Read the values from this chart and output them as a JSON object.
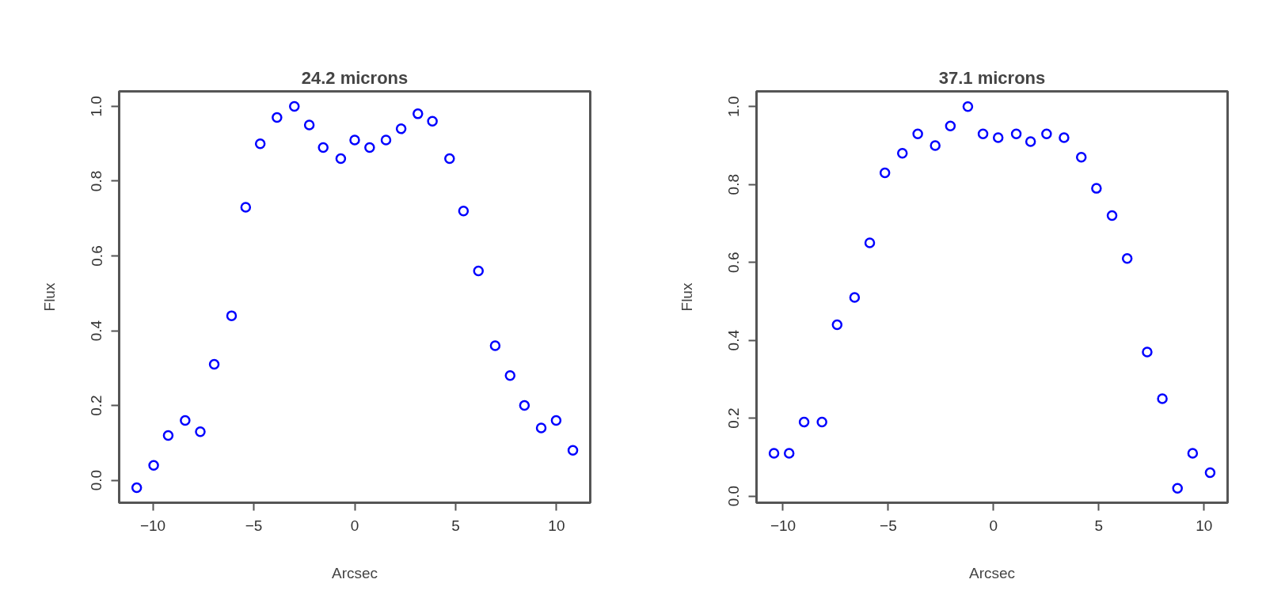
{
  "chart_data": [
    {
      "type": "scatter",
      "title": "24.2 microns",
      "xlabel": "Arcsec",
      "ylabel": "Flux",
      "marker": "circle",
      "xlim": [
        -11.67,
        11.67
      ],
      "ylim": [
        -0.06,
        1.04
      ],
      "xticks": [
        -10,
        -5,
        0,
        5,
        10
      ],
      "yticks": [
        {
          "value": 0,
          "label": "0.0"
        },
        {
          "value": 0.2,
          "label": "0.2"
        },
        {
          "value": 0.4,
          "label": "0.4"
        },
        {
          "value": 0.6,
          "label": "0.6"
        },
        {
          "value": 0.8,
          "label": "0.8"
        },
        {
          "value": 1,
          "label": "1.0"
        }
      ],
      "series": [
        {
          "color": "#0000ff",
          "x": [
            -10.8,
            -9.96,
            -9.24,
            -8.4,
            -7.65,
            -6.96,
            -6.1,
            -5.4,
            -4.68,
            -3.85,
            -2.99,
            -2.25,
            -1.56,
            -0.69,
            0,
            0.74,
            1.55,
            2.3,
            3.13,
            3.85,
            4.7,
            5.39,
            6.13,
            6.96,
            7.7,
            8.41,
            9.24,
            9.98,
            10.81
          ],
          "values": [
            -0.02,
            0.04,
            0.12,
            0.16,
            0.13,
            0.31,
            0.44,
            0.73,
            0.9,
            0.97,
            1.0,
            0.95,
            0.89,
            0.86,
            0.91,
            0.89,
            0.91,
            0.94,
            0.98,
            0.96,
            0.86,
            0.72,
            0.56,
            0.36,
            0.28,
            0.2,
            0.14,
            0.16,
            0.08
          ]
        }
      ]
    },
    {
      "type": "scatter",
      "title": "37.1 microns",
      "xlabel": "Arcsec",
      "ylabel": "Flux",
      "marker": "circle",
      "xlim": [
        -11.26,
        11.12
      ],
      "ylim": [
        -0.017,
        1.039
      ],
      "xticks": [
        -10,
        -5,
        0,
        5,
        10
      ],
      "yticks": [
        {
          "value": 0,
          "label": "0.0"
        },
        {
          "value": 0.2,
          "label": "0.2"
        },
        {
          "value": 0.4,
          "label": "0.4"
        },
        {
          "value": 0.6,
          "label": "0.6"
        },
        {
          "value": 0.8,
          "label": "0.8"
        },
        {
          "value": 1,
          "label": "1.0"
        }
      ],
      "series": [
        {
          "color": "#0000ff",
          "x": [
            -10.43,
            -9.71,
            -9.0,
            -8.15,
            -7.43,
            -6.6,
            -5.88,
            -5.16,
            -4.33,
            -3.6,
            -2.77,
            -2.05,
            -1.22,
            -0.5,
            0.22,
            1.08,
            1.76,
            2.52,
            3.35,
            4.17,
            4.89,
            5.63,
            6.35,
            7.3,
            8.02,
            8.74,
            9.46,
            10.29
          ],
          "values": [
            0.11,
            0.11,
            0.19,
            0.19,
            0.44,
            0.51,
            0.65,
            0.83,
            0.88,
            0.93,
            0.9,
            0.95,
            1.0,
            0.93,
            0.92,
            0.93,
            0.91,
            0.93,
            0.92,
            0.87,
            0.79,
            0.72,
            0.61,
            0.37,
            0.25,
            0.02,
            0.11,
            0.06
          ]
        }
      ]
    }
  ]
}
